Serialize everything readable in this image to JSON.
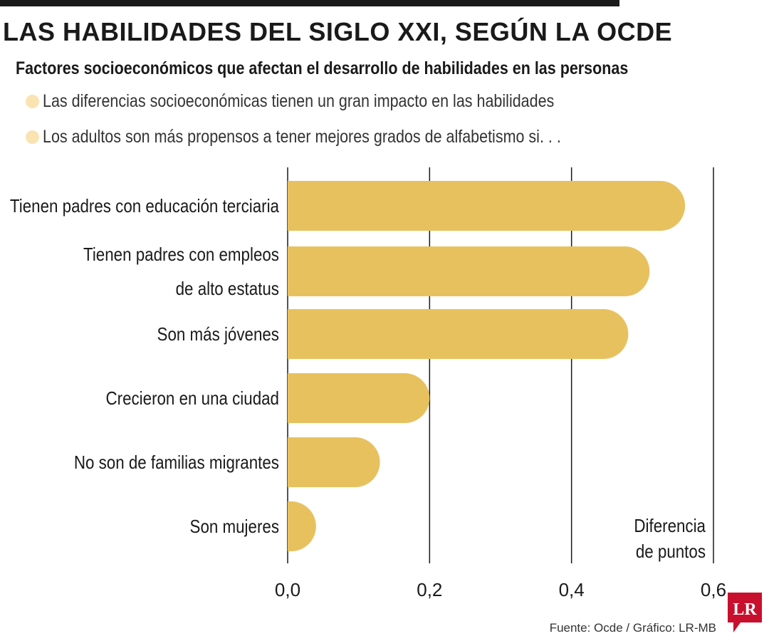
{
  "header": {
    "title": "LAS HABILIDADES DEL SIGLO XXI, SEGÚN LA OCDE",
    "subtitle": "Factores socioeconómicos que afectan el desarrollo de habilidades en las personas",
    "bullets": [
      "Las diferencias socioeconómicas tienen un gran impacto en las habilidades",
      "Los adultos son más propensos a tener mejores grados de alfabetismo si. . ."
    ]
  },
  "colors": {
    "bar": "#e8c15f",
    "bullet": "#fbe3b1",
    "grid": "#1a1a1a",
    "logo": "#c8102e"
  },
  "chart_data": {
    "type": "bar",
    "orientation": "horizontal",
    "categories": [
      [
        "Tienen padres con educación terciaria"
      ],
      [
        "Tienen padres con empleos",
        "de alto estatus"
      ],
      [
        "Son más jóvenes"
      ],
      [
        "Crecieron en una ciudad"
      ],
      [
        "No son de familias migrantes"
      ],
      [
        "Son mujeres"
      ]
    ],
    "values": [
      0.56,
      0.51,
      0.48,
      0.2,
      0.13,
      0.04
    ],
    "xlim": [
      0,
      0.6
    ],
    "ticks": [
      0,
      0.2,
      0.4,
      0.6
    ],
    "tick_labels": [
      "0,0",
      "0,2",
      "0,4",
      "0,6"
    ],
    "xlabel": [
      "Diferencia",
      "de puntos"
    ],
    "grid": true
  },
  "footer": {
    "source": "Fuente: Ocde / Gráfico: LR-MB",
    "logo_text": "LR"
  }
}
